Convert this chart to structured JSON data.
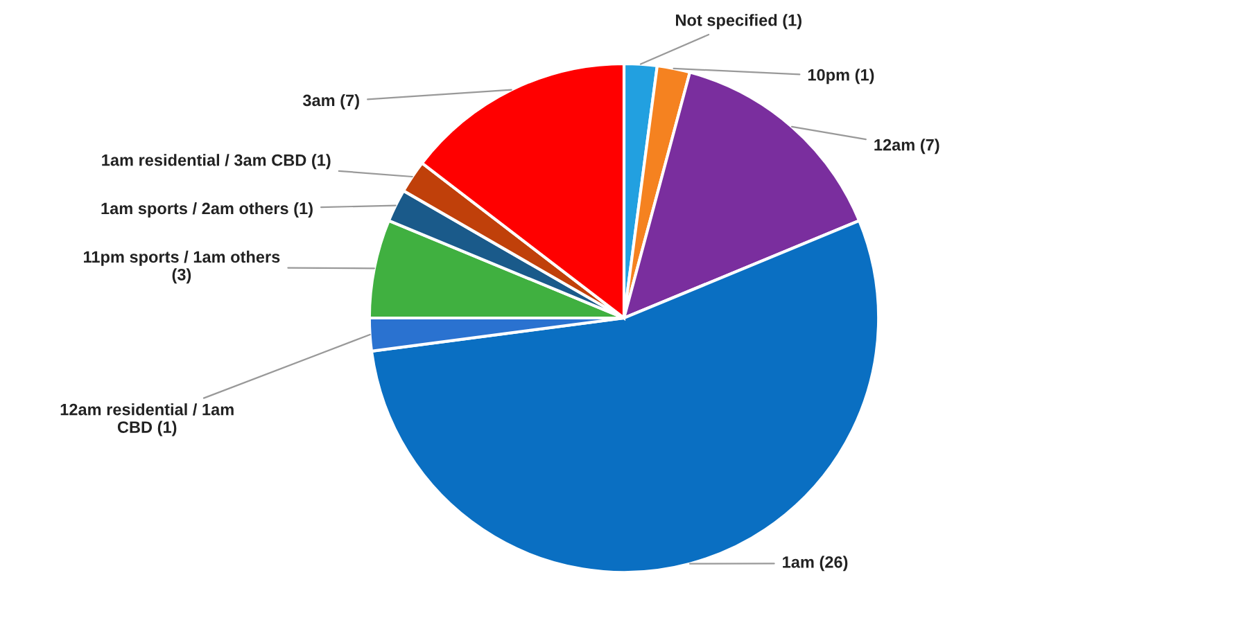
{
  "chart_data": {
    "type": "pie",
    "categories": [
      "Not specified (1)",
      "10pm (1)",
      "12am (7)",
      "1am (26)",
      "12am residential / 1am\nCBD (1)",
      "11pm sports / 1am others\n(3)",
      "1am sports / 2am others (1)",
      "1am residential / 3am CBD (1)",
      "3am (7)"
    ],
    "values": [
      1,
      1,
      7,
      26,
      1,
      3,
      1,
      1,
      7
    ],
    "colors": [
      "#22a0e0",
      "#f58220",
      "#7a2e9e",
      "#0a6fc2",
      "#2a72d0",
      "#40b040",
      "#1a5a8a",
      "#c0400a",
      "#ff0000"
    ]
  }
}
